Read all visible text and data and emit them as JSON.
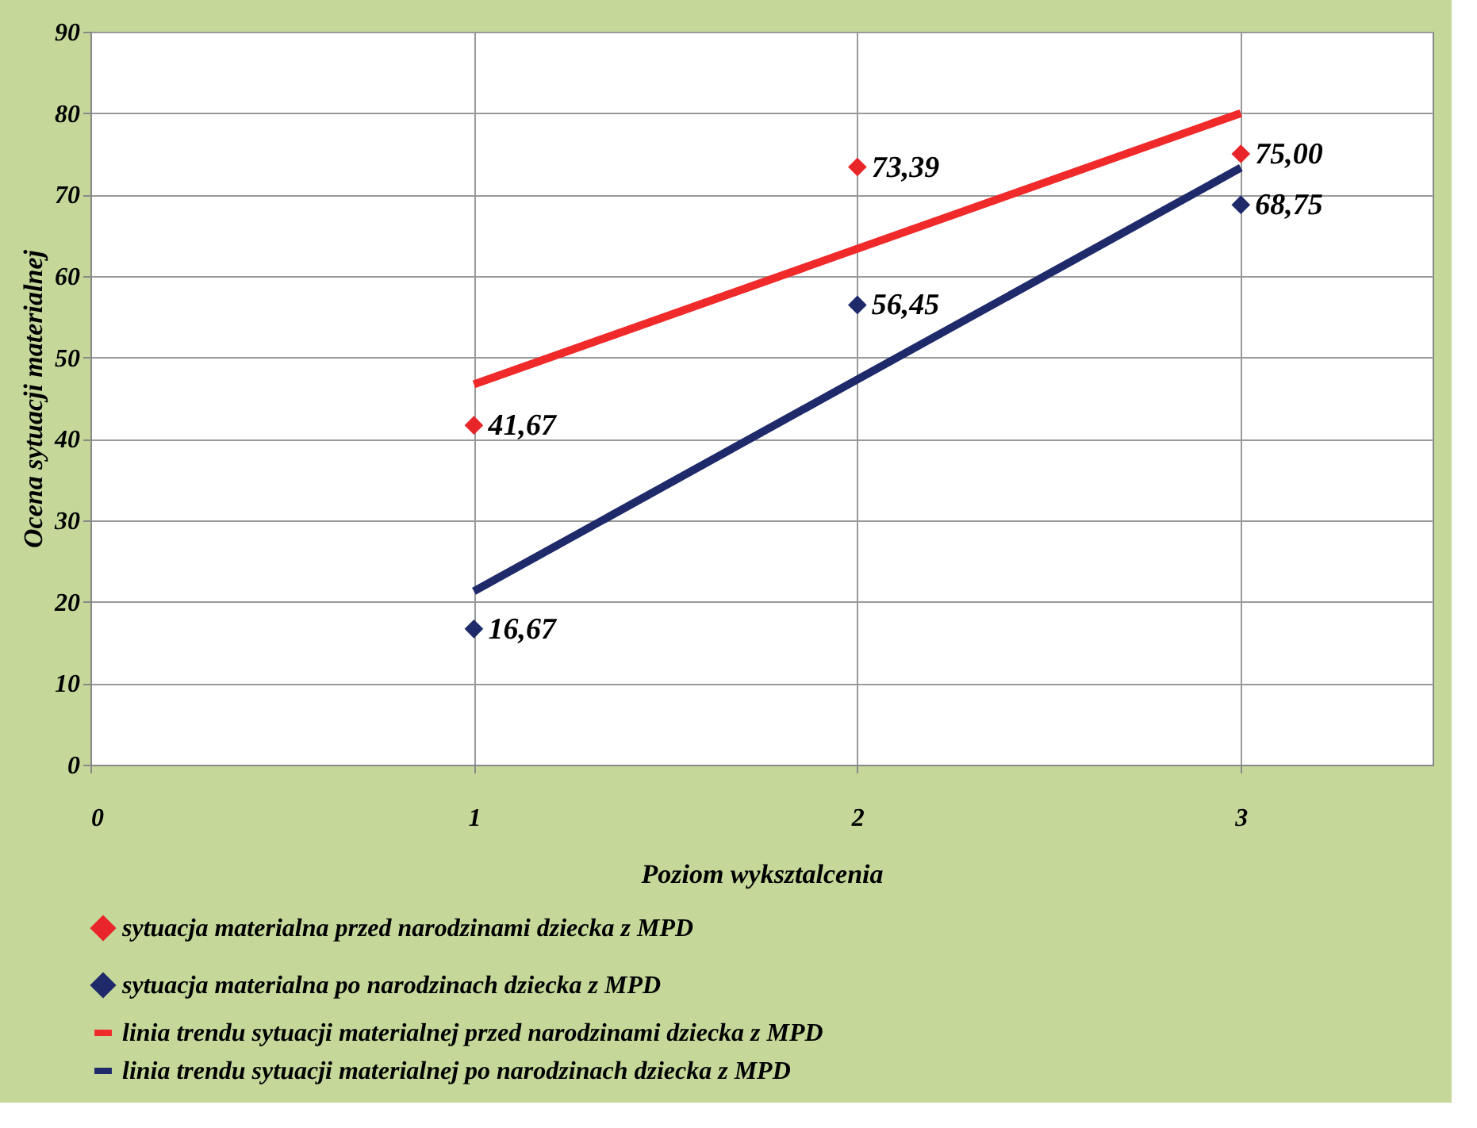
{
  "chart_data": {
    "type": "scatter",
    "xlabel": "Poziom wyksztalcenia",
    "ylabel": "Ocena sytuacji materialnej",
    "xlim": [
      0,
      3.5
    ],
    "xticks": [
      0,
      1,
      2,
      3
    ],
    "ylim": [
      0,
      90
    ],
    "yticks": [
      0,
      10,
      20,
      30,
      40,
      50,
      60,
      70,
      80,
      90
    ],
    "grid": true,
    "legend": "bottom",
    "series": [
      {
        "marker": "diamond",
        "name": "sytuacja materialna przed narodzinami dziecka z MPD",
        "color": "#e8262a",
        "x": [
          1,
          2,
          3
        ],
        "values": [
          41.67,
          73.39,
          75.0
        ],
        "value_labels": [
          "41,67",
          "73,39",
          "75,00"
        ]
      },
      {
        "marker": "diamond",
        "name": "sytuacja materialna po narodzinach dziecka z MPD",
        "color": "#1f2a6b",
        "x": [
          1,
          2,
          3
        ],
        "values": [
          16.67,
          56.45,
          68.75
        ],
        "value_labels": [
          "16,67",
          "56,45",
          "68,75"
        ]
      },
      {
        "type": "line",
        "name": "linia trendu sytuacji materialnej przed narodzinami dziecka z MPD",
        "color": "#f02a2a",
        "x": [
          1,
          3
        ],
        "values": [
          46.7,
          80
        ]
      },
      {
        "type": "line",
        "name": "linia trendu sytuacji materialnej po narodzinach dziecka z MPD",
        "color": "#1f2a6b",
        "x": [
          1,
          3
        ],
        "values": [
          21.3,
          73.3
        ]
      }
    ]
  }
}
